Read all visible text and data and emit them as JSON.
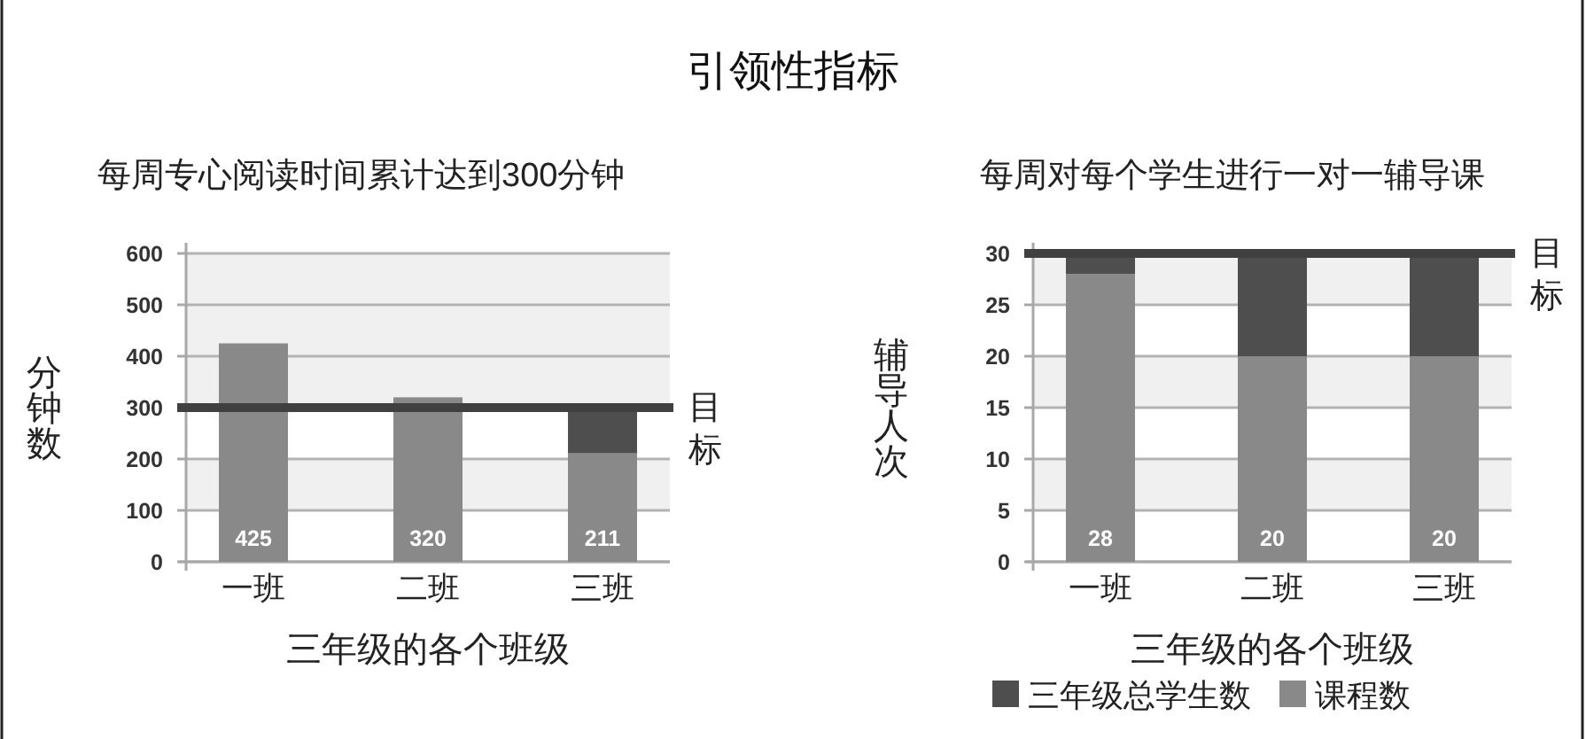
{
  "chart_data": [
    {
      "type": "other",
      "title": "引领性指标"
    },
    {
      "type": "bar",
      "title": "每周专心阅读时间累计达到300分钟",
      "xlabel": "三年级的各个班级",
      "ylabel": "分钟数",
      "categories": [
        "一班",
        "二班",
        "三班"
      ],
      "stacked": true,
      "series": [
        {
          "color": "#898989",
          "values": [
            425,
            320,
            211
          ],
          "value_labels": [
            "425",
            "320",
            "211"
          ]
        },
        {
          "color": "#4e4e4e",
          "values": [
            null,
            null,
            89
          ]
        }
      ],
      "ylim": [
        0,
        600
      ],
      "yticks": [
        0,
        100,
        200,
        300,
        400,
        500,
        600
      ],
      "grid": "y",
      "bands": [
        {
          "axis": "y",
          "from": 100,
          "to": 200,
          "color": "#f0f0f0"
        },
        {
          "axis": "y",
          "from": 300,
          "to": 600,
          "color": "#f0f0f0"
        }
      ],
      "ref_lines": [
        {
          "axis": "y",
          "value": 300,
          "label": "目标",
          "color": "#404040"
        }
      ]
    },
    {
      "type": "bar",
      "title": "每周对每个学生进行一对一辅导课",
      "xlabel": "三年级的各个班级",
      "ylabel": "辅导人次",
      "categories": [
        "一班",
        "二班",
        "三班"
      ],
      "stacked": true,
      "series": [
        {
          "name": "课程数",
          "color": "#898989",
          "values": [
            28,
            20,
            20
          ],
          "value_labels": [
            "28",
            "20",
            "20"
          ]
        },
        {
          "name": "三年级总学生数",
          "color": "#4e4e4e",
          "values": [
            2,
            10,
            10
          ]
        }
      ],
      "ylim": [
        0,
        30
      ],
      "yticks": [
        0,
        5,
        10,
        15,
        20,
        25,
        30
      ],
      "grid": "y",
      "bands": [
        {
          "axis": "y",
          "from": 5,
          "to": 10,
          "color": "#f0f0f0"
        },
        {
          "axis": "y",
          "from": 15,
          "to": 20,
          "color": "#f0f0f0"
        },
        {
          "axis": "y",
          "from": 25,
          "to": 30,
          "color": "#f0f0f0"
        }
      ],
      "ref_lines": [
        {
          "axis": "y",
          "value": 30,
          "label": "目标",
          "color": "#404040"
        }
      ],
      "legend": "bottom"
    }
  ]
}
